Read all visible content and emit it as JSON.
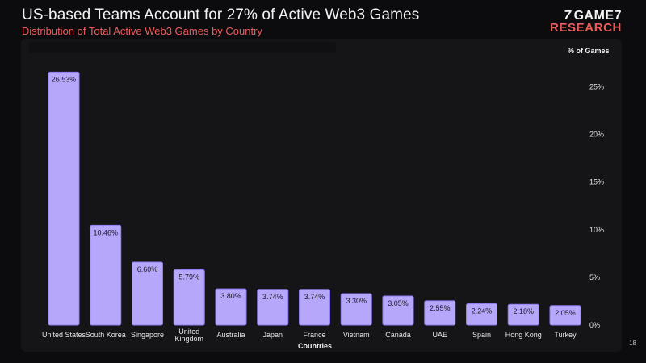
{
  "header": {
    "title": "US-based Teams Account for 27% of Active Web3 Games",
    "subtitle": "Distribution of Total Active Web3 Games by Country"
  },
  "logo": {
    "line1": "GAME7",
    "line2": "RESEARCH",
    "glyph": "7"
  },
  "page_number": "18",
  "colors": {
    "bar": "#b7a7fb",
    "accent": "#ee5b5b",
    "background": "#0c0c0e"
  },
  "chart_data": {
    "type": "bar",
    "title": "Distribution of Total Active Web3 Games by Country",
    "xlabel": "Countries",
    "ylabel": "% of Games",
    "ylim": [
      0,
      27
    ],
    "yticks": [
      0,
      5,
      10,
      15,
      20,
      25
    ],
    "ytick_labels": [
      "0%",
      "5%",
      "10%",
      "15%",
      "20%",
      "25%"
    ],
    "y_axis_position": "right",
    "grid": false,
    "categories": [
      "United States",
      "South Korea",
      "Singapore",
      "United Kingdom",
      "Australia",
      "Japan",
      "France",
      "Vietnam",
      "Canada",
      "UAE",
      "Spain",
      "Hong Kong",
      "Turkey"
    ],
    "values": [
      26.53,
      10.46,
      6.6,
      5.79,
      3.8,
      3.74,
      3.74,
      3.3,
      3.05,
      2.55,
      2.24,
      2.18,
      2.05
    ],
    "value_labels": [
      "26.53%",
      "10.46%",
      "6.60%",
      "5.79%",
      "3.80%",
      "3.74%",
      "3.74%",
      "3.30%",
      "3.05%",
      "2.55%",
      "2.24%",
      "2.18%",
      "2.05%"
    ]
  }
}
